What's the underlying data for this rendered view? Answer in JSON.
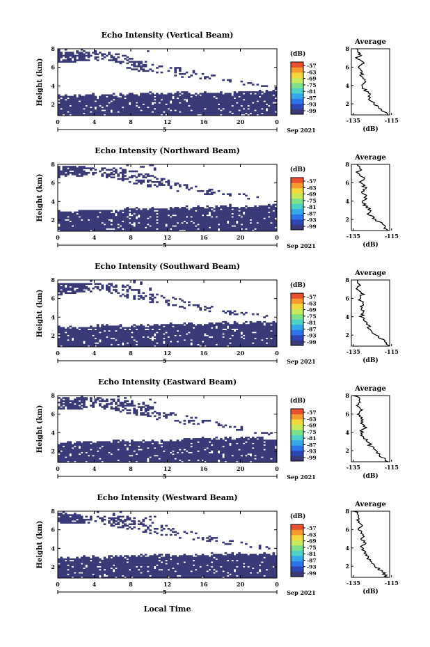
{
  "common": {
    "x_axis_label": "Local Time",
    "time_ticks": [
      "0",
      "4",
      "8",
      "12",
      "16",
      "20",
      "0"
    ],
    "day_label": "5",
    "date_label": "Sep 2021",
    "height_label": "Height (km)",
    "height_ticks": [
      "2",
      "4",
      "6",
      "8"
    ],
    "colorbar_unit": "(dB)",
    "colorbar_ticks": [
      "-57",
      "-63",
      "-69",
      "-75",
      "-81",
      "-87",
      "-93",
      "-99"
    ],
    "avg_title": "Average",
    "avg_unit": "(dB)",
    "avg_xticks": [
      "-135",
      "-115"
    ],
    "colorscale": [
      "#3a3a78",
      "#2d46b4",
      "#2d74e8",
      "#36a8e8",
      "#4ed2c8",
      "#7fe08a",
      "#c8ea5a",
      "#f2d83c",
      "#f59a2e",
      "#e85030"
    ]
  },
  "chart_data": [
    {
      "type": "heatmap",
      "title": "Echo Intensity (Vertical Beam)",
      "x_range_hours": [
        0,
        24
      ],
      "y_range_km": [
        0.8,
        8
      ],
      "low_layer_top_km": [
        3.0,
        3.0,
        3.0,
        3.1,
        3.1,
        3.2,
        3.2,
        3.3,
        3.2,
        3.3,
        3.4,
        3.4,
        3.5
      ],
      "upper_layer_top_km": [
        7.6,
        7.8,
        7.8,
        7.6,
        7.2,
        6.5,
        6.2,
        6.0,
        5.4,
        5.0,
        4.6,
        4.2,
        3.9
      ],
      "upper_layer_bottom_km": [
        6.6,
        6.6,
        6.8,
        6.6,
        5.8,
        5.4,
        5.2,
        4.9,
        4.7,
        4.5,
        4.2,
        3.9,
        3.6
      ],
      "average_profile": {
        "height_km": [
          0.8,
          1.5,
          2.0,
          2.5,
          3.0,
          3.5,
          4.0,
          4.5,
          5.0,
          5.5,
          6.0,
          6.5,
          7.0,
          7.5,
          8.0
        ],
        "db": [
          -117,
          -121,
          -124,
          -127,
          -126,
          -129,
          -131,
          -129,
          -131,
          -130,
          -132,
          -130,
          -133,
          -131,
          -134
        ]
      },
      "x_ticks": [
        "0",
        "4",
        "8",
        "12",
        "16",
        "20",
        "0"
      ],
      "xlim": [
        -136,
        -116
      ],
      "avg_xticks": [
        "-135",
        "-115"
      ]
    },
    {
      "type": "heatmap",
      "title": "Echo Intensity (Northward Beam)",
      "x_range_hours": [
        0,
        24
      ],
      "y_range_km": [
        0.8,
        8
      ],
      "low_layer_top_km": [
        3.0,
        3.0,
        3.1,
        3.1,
        3.2,
        3.3,
        3.3,
        3.4,
        3.4,
        3.5,
        3.5,
        3.5,
        3.6
      ],
      "upper_layer_top_km": [
        7.8,
        7.8,
        7.7,
        7.7,
        7.5,
        6.9,
        6.4,
        5.9,
        5.5,
        5.2,
        4.9,
        4.6,
        4.2
      ],
      "upper_layer_bottom_km": [
        6.6,
        6.7,
        6.8,
        6.5,
        6.0,
        5.6,
        5.3,
        5.0,
        4.8,
        4.6,
        4.4,
        4.2,
        3.9
      ],
      "average_profile": {
        "height_km": [
          0.8,
          1.5,
          2.0,
          2.5,
          3.0,
          3.5,
          4.0,
          4.5,
          5.0,
          5.5,
          6.0,
          6.5,
          7.0,
          7.5,
          8.0
        ],
        "db": [
          -117,
          -120,
          -123,
          -127,
          -126,
          -129,
          -130,
          -128,
          -130,
          -129,
          -131,
          -130,
          -133,
          -131,
          -134
        ]
      },
      "x_ticks": [
        "0",
        "4",
        "8",
        "12",
        "16",
        "20",
        "0"
      ],
      "xlim": [
        -136,
        -116
      ],
      "avg_xticks": [
        "-135",
        "-115"
      ]
    },
    {
      "type": "heatmap",
      "title": "Echo Intensity (Southward Beam)",
      "x_range_hours": [
        0,
        24
      ],
      "y_range_km": [
        0.8,
        8
      ],
      "low_layer_top_km": [
        2.9,
        2.9,
        3.0,
        3.1,
        3.1,
        3.2,
        3.2,
        3.3,
        3.3,
        3.4,
        3.4,
        3.5,
        3.5
      ],
      "upper_layer_top_km": [
        7.7,
        7.7,
        7.6,
        7.6,
        7.4,
        6.8,
        6.3,
        5.8,
        5.3,
        5.0,
        4.6,
        4.3,
        4.0
      ],
      "upper_layer_bottom_km": [
        6.4,
        6.6,
        6.8,
        6.5,
        6.0,
        5.6,
        5.2,
        4.9,
        4.7,
        4.4,
        4.2,
        3.9,
        3.7
      ],
      "average_profile": {
        "height_km": [
          0.8,
          1.5,
          2.0,
          2.5,
          3.0,
          3.5,
          4.0,
          4.5,
          5.0,
          5.5,
          6.0,
          6.5,
          7.0,
          7.5,
          8.0
        ],
        "db": [
          -116,
          -120,
          -123,
          -126,
          -127,
          -129,
          -131,
          -129,
          -131,
          -130,
          -132,
          -130,
          -133,
          -131,
          -134
        ]
      },
      "x_ticks": [
        "0",
        "4",
        "8",
        "12",
        "16",
        "20",
        "0"
      ],
      "xlim": [
        -136,
        -116
      ],
      "avg_xticks": [
        "-135",
        "-115"
      ]
    },
    {
      "type": "heatmap",
      "title": "Echo Intensity (Eastward Beam)",
      "x_range_hours": [
        0,
        24
      ],
      "y_range_km": [
        0.8,
        8
      ],
      "low_layer_top_km": [
        3.0,
        3.0,
        3.0,
        3.1,
        3.1,
        3.2,
        3.2,
        3.3,
        3.4,
        3.4,
        3.5,
        3.4,
        3.3
      ],
      "upper_layer_top_km": [
        7.8,
        7.8,
        7.8,
        7.7,
        7.5,
        7.0,
        6.4,
        5.9,
        5.5,
        5.1,
        4.7,
        4.3,
        4.0
      ],
      "upper_layer_bottom_km": [
        6.5,
        6.5,
        6.7,
        6.5,
        6.0,
        5.6,
        5.2,
        4.9,
        4.7,
        4.5,
        4.2,
        3.9,
        3.7
      ],
      "average_profile": {
        "height_km": [
          0.8,
          1.5,
          2.0,
          2.5,
          3.0,
          3.5,
          4.0,
          4.5,
          5.0,
          5.5,
          6.0,
          6.5,
          7.0,
          7.5,
          8.0
        ],
        "db": [
          -117,
          -121,
          -123,
          -126,
          -127,
          -130,
          -131,
          -129,
          -131,
          -130,
          -132,
          -131,
          -133,
          -131,
          -134
        ]
      },
      "x_ticks": [
        "0",
        "4",
        "8",
        "12",
        "16",
        "20",
        "0"
      ],
      "xlim": [
        -136,
        -116
      ],
      "avg_xticks": [
        "-135",
        "-115"
      ]
    },
    {
      "type": "heatmap",
      "title": "Echo Intensity (Westward Beam)",
      "x_range_hours": [
        0,
        24
      ],
      "y_range_km": [
        0.8,
        8
      ],
      "low_layer_top_km": [
        3.0,
        3.0,
        3.1,
        3.1,
        3.2,
        3.2,
        3.3,
        3.3,
        3.3,
        3.4,
        3.5,
        3.4,
        3.4
      ],
      "upper_layer_top_km": [
        7.8,
        7.7,
        7.6,
        7.5,
        7.4,
        7.0,
        6.5,
        6.0,
        5.6,
        5.2,
        4.8,
        4.4,
        4.1
      ],
      "upper_layer_bottom_km": [
        6.6,
        6.7,
        6.8,
        6.4,
        6.0,
        5.6,
        5.3,
        5.0,
        4.7,
        4.5,
        4.3,
        4.0,
        3.8
      ],
      "average_profile": {
        "height_km": [
          0.8,
          1.5,
          2.0,
          2.5,
          3.0,
          3.5,
          4.0,
          4.5,
          5.0,
          5.5,
          6.0,
          6.5,
          7.0,
          7.5,
          8.0
        ],
        "db": [
          -117,
          -120,
          -124,
          -126,
          -127,
          -129,
          -131,
          -129,
          -130,
          -130,
          -132,
          -131,
          -133,
          -131,
          -134
        ]
      },
      "x_ticks": [
        "0",
        "4",
        "8",
        "12",
        "16",
        "20",
        "0"
      ],
      "xlim": [
        -136,
        -116
      ],
      "avg_xticks": [
        "-135",
        "-115"
      ]
    }
  ]
}
